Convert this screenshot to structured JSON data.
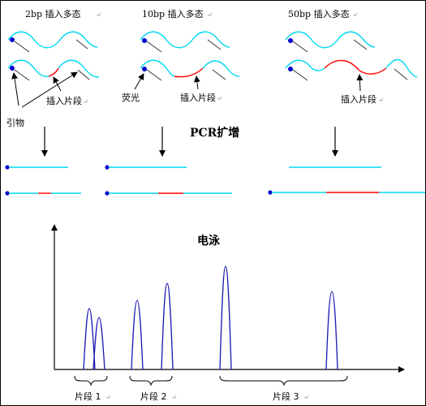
{
  "insertion_labels": {
    "bp2": "2bp 插入多态",
    "bp10": "10bp 插入多态",
    "bp50": "50bp 插入多态"
  },
  "annotations": {
    "primer": "引物",
    "fluorescence": "荧光",
    "insert_fragment": "插入片段"
  },
  "steps": {
    "pcr": "PCR扩增",
    "electrophoresis": "电泳"
  },
  "fragments": {
    "f1": "片段 1",
    "f2": "片段 2",
    "f3": "片段 3"
  },
  "paragraph_mark": "↵",
  "colors": {
    "strand": "#00d8f0",
    "insert": "#ff0000",
    "dye": "#0000cc",
    "peak": "#1a1ab0",
    "axis": "#000000",
    "border": "#000000"
  }
}
